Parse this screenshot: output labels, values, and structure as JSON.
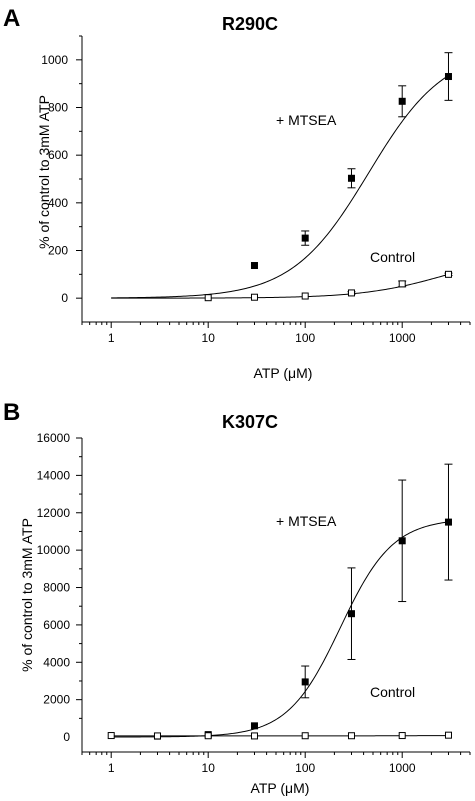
{
  "chart_data": [
    {
      "panel": "A",
      "type": "scatter",
      "title": "R290C",
      "xlabel": "ATP (μM)",
      "ylabel": "% of control to 3mM ATP",
      "xscale": "log",
      "xlim": [
        0.5,
        5000
      ],
      "ylim": [
        -100,
        1100
      ],
      "yticks": [
        0,
        200,
        400,
        600,
        800,
        1000
      ],
      "xtick_labels": [
        "1",
        "10",
        "100",
        "1000"
      ],
      "series": [
        {
          "name": "+ MTSEA",
          "marker": "filled-square",
          "x": [
            30,
            100,
            300,
            1000,
            3000
          ],
          "y": [
            137,
            252,
            503,
            826,
            930
          ],
          "err": [
            0,
            30,
            40,
            65,
            100
          ],
          "fit": {
            "bottom": 0,
            "top": 1050,
            "ec50": 450,
            "hill": 1.1
          }
        },
        {
          "name": "Control",
          "marker": "open-square",
          "x": [
            10,
            30,
            100,
            300,
            1000,
            3000
          ],
          "y": [
            2,
            4,
            9,
            22,
            60,
            100
          ],
          "err": [
            0,
            0,
            0,
            5,
            12,
            5
          ],
          "fit": {
            "bottom": 0,
            "top": 200,
            "ec50": 3000,
            "hill": 1.0
          }
        }
      ]
    },
    {
      "panel": "B",
      "type": "scatter",
      "title": "K307C",
      "xlabel": "ATP (μM)",
      "ylabel": "% of control to 3mM ATP",
      "xscale": "log",
      "xlim": [
        0.5,
        5000
      ],
      "ylim": [
        -800,
        16000
      ],
      "yticks": [
        0,
        2000,
        4000,
        6000,
        8000,
        10000,
        12000,
        14000,
        16000
      ],
      "xtick_labels": [
        "1",
        "10",
        "100",
        "1000"
      ],
      "series": [
        {
          "name": "+ MTSEA",
          "marker": "filled-square",
          "x": [
            3,
            10,
            30,
            100,
            300,
            1000,
            3000
          ],
          "y": [
            50,
            130,
            600,
            2950,
            6600,
            10500,
            11500
          ],
          "err": [
            0,
            0,
            0,
            850,
            2450,
            3250,
            3100
          ],
          "fit": {
            "bottom": 0,
            "top": 11700,
            "ec50": 230,
            "hill": 1.6
          }
        },
        {
          "name": "Control",
          "marker": "open-square",
          "x": [
            1,
            3,
            10,
            30,
            100,
            300,
            1000,
            3000
          ],
          "y": [
            80,
            60,
            70,
            60,
            70,
            70,
            80,
            100
          ],
          "err": [
            0,
            0,
            0,
            0,
            0,
            0,
            0,
            0
          ],
          "fit": {
            "bottom": 60,
            "top": 100,
            "ec50": 3000,
            "hill": 1.0
          }
        }
      ]
    }
  ]
}
